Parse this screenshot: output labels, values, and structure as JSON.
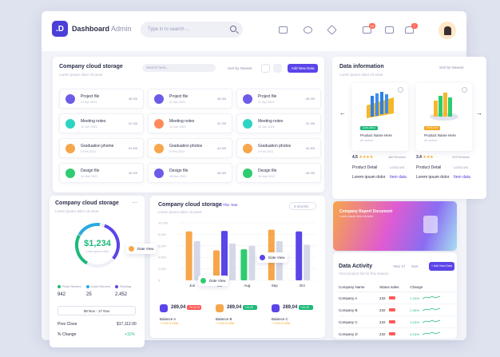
{
  "header": {
    "logo": ".D",
    "brand_bold": "Dashboard",
    "brand_light": "Admin",
    "search_placeholder": "Type in to search ...",
    "notifications": {
      "mail_count": "10",
      "alert_count": "7"
    }
  },
  "storage": {
    "title": "Company cloud storage",
    "subtitle": "Lorem ipsum dolor sit amet",
    "search_placeholder": "Search here...",
    "sort_label": "Sort by Newest",
    "add_button": "Add New Data",
    "files": [
      {
        "name": "Project file",
        "date": "21 Apr 2021",
        "size": "48 GB",
        "color": "#6c5ce7"
      },
      {
        "name": "Project file",
        "date": "21 Apr 2021",
        "size": "48 GB",
        "color": "#6c5ce7"
      },
      {
        "name": "Project file",
        "date": "21 Apr 2021",
        "size": "48 GB",
        "color": "#6c5ce7"
      },
      {
        "name": "Meeting notes",
        "date": "12 Jun 2021",
        "size": "32 GB",
        "color": "#2ed3c4"
      },
      {
        "name": "Meeting notes",
        "date": "12 Jun 2021",
        "size": "32 GB",
        "color": "#ff8a5b"
      },
      {
        "name": "Meeting notes",
        "date": "12 Jun 2021",
        "size": "32 GB",
        "color": "#2ed3c4"
      },
      {
        "name": "Graduation phome",
        "date": "3 Feb 2021",
        "size": "64 KB",
        "color": "#f7a64a"
      },
      {
        "name": "Graduation photos",
        "date": "3 Feb 2021",
        "size": "64 KB",
        "color": "#f7a64a"
      },
      {
        "name": "Graduation photos",
        "date": "3 Feb 2021",
        "size": "64 KB",
        "color": "#f7a64a"
      },
      {
        "name": "Design file",
        "date": "16 Mar 2021",
        "size": "48 GB",
        "color": "#2ecc71"
      },
      {
        "name": "Design file",
        "date": "16 Mar 2021",
        "size": "48 GB",
        "color": "#6c5ce7"
      },
      {
        "name": "Design file",
        "date": "16 Mar 2021",
        "size": "48 GB",
        "color": "#2ecc71"
      }
    ]
  },
  "data_info": {
    "title": "Data information",
    "subtitle": "Lorem ipsum dolor sit amet",
    "sort_label": "Sort by Newest",
    "products": [
      {
        "tag": "AVAILABLE",
        "tag_color": "#1db979",
        "name": "Product Name Here",
        "sub": "All content",
        "rating": "4.5",
        "reviews": "486 Reviews",
        "detail": "Product Detail",
        "code": "LOGO-001",
        "desc": "Lorem ipsum dolor",
        "link": "Item data"
      },
      {
        "tag": "POPULAR",
        "tag_color": "#f5a623",
        "name": "Product Name Here",
        "sub": "All content",
        "rating": "3.4",
        "reviews": "323 Reviews",
        "detail": "Product Detail",
        "code": "LOGO-001",
        "desc": "Lorem ipsum dolor",
        "link": "Item data"
      }
    ]
  },
  "donut": {
    "title": "Company cloud storage",
    "subtitle": "Lorem ipsum dolor sit amet",
    "value": "$1,234",
    "value_sub": "Lorem ipsum dolor",
    "legend": [
      {
        "label": "Fixed Servers",
        "value": "942",
        "color": "#1db979"
      },
      {
        "label": "Down Servers",
        "value": "25",
        "color": "#2aa9e0"
      },
      {
        "label": "Running",
        "value": "2,452",
        "color": "#5a45e8"
      }
    ],
    "date_range": "08 Nov - 17 Nov",
    "prev_close_label": "Prev Close",
    "prev_close_value": "$17,112.00",
    "change_label": "% Change",
    "change_value": "+11%"
  },
  "bar_card": {
    "title": "Company cloud storage",
    "period": "In This Year",
    "subtitle": "Lorem ipsum dolor sit amet",
    "range_select": "6 Months",
    "tooltip": "Date View",
    "balances": [
      {
        "value": "289,04",
        "change": "-76.22 %",
        "change_color": "#ff5a5a",
        "name": "Balance A",
        "sub": "+ 4 MO 8 4356",
        "color": "#5a45e8"
      },
      {
        "value": "289,04",
        "change": "+16.25 %",
        "change_color": "#1db979",
        "name": "Balance B",
        "sub": "+ 4 MO 8 4356",
        "color": "#f7a64a"
      },
      {
        "value": "289,04",
        "change": "+16.25 %",
        "change_color": "#1db979",
        "name": "Balance C",
        "sub": "+ 4 MO 8 4356",
        "color": "#5a45e8"
      }
    ]
  },
  "chart_data": {
    "type": "bar",
    "categories": [
      "Jun",
      "Jul",
      "Aug",
      "Sep",
      "Oct"
    ],
    "yticks": [
      "10,000",
      "8,000",
      "6,000",
      "4,000",
      "2,000",
      "0"
    ],
    "ylim": [
      0,
      10000
    ],
    "series": [
      {
        "name": "",
        "color": "#f7a64a",
        "values": [
          8500,
          5200,
          0,
          8800,
          0
        ]
      },
      {
        "name": "",
        "color": "#5a45e8",
        "values": [
          0,
          8600,
          0,
          0,
          8500
        ]
      },
      {
        "name": "",
        "color": "#2ecc71",
        "values": [
          0,
          0,
          5400,
          0,
          0
        ]
      },
      {
        "name": "",
        "color": "#d5d8e6",
        "values": [
          6800,
          6400,
          6000,
          6800,
          6200
        ]
      }
    ]
  },
  "report": {
    "title": "Company Report Document",
    "subtitle": "Lorem ipsum dolor sit amet"
  },
  "activity": {
    "title": "Data Activity",
    "subtitle": "Your product list for this season",
    "filter1": "Year 17",
    "filter2": "Sort",
    "add_button": "+ Add New Data",
    "columns": [
      "Company Name",
      "Status sales",
      "Change"
    ],
    "rows": [
      {
        "name": "Company A",
        "status": "232",
        "tag_color": "#ff5a5a",
        "change": "1.23%"
      },
      {
        "name": "Company B",
        "status": "232",
        "tag_color": "#ff5a5a",
        "change": "2.33%"
      },
      {
        "name": "Company C",
        "status": "232",
        "tag_color": "#ff5a5a",
        "change": "3.23%"
      },
      {
        "name": "Company D",
        "status": "232",
        "tag_color": "#ff5a5a",
        "change": "6.15%"
      }
    ]
  }
}
